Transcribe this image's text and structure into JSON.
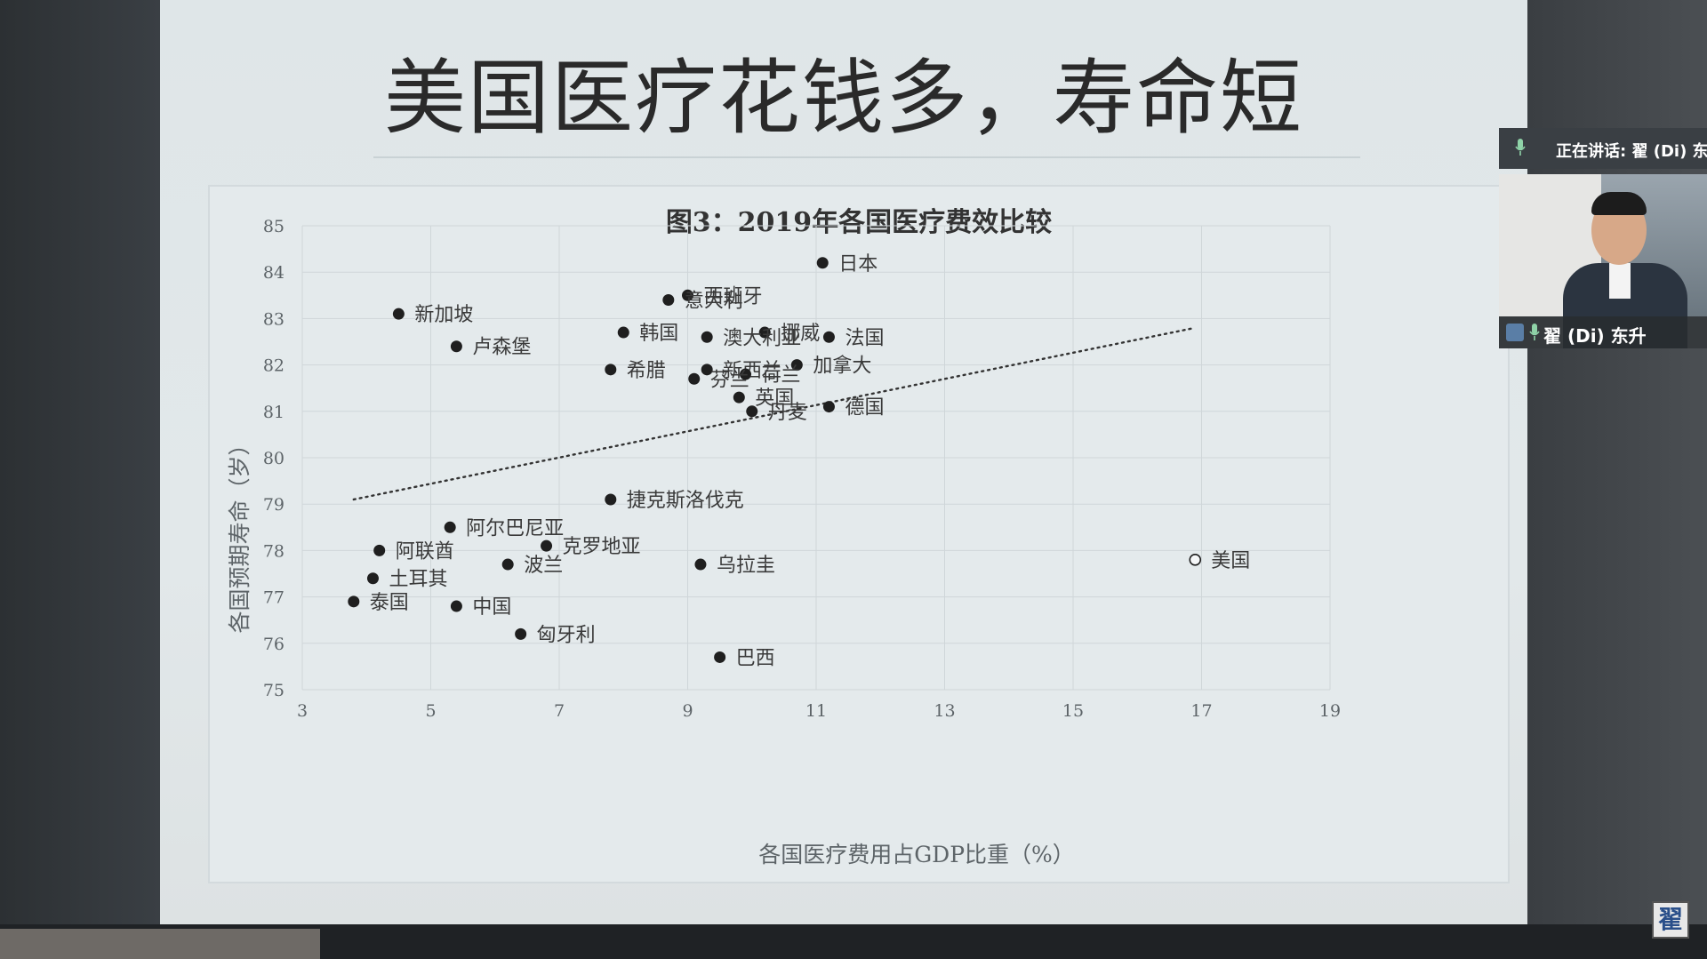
{
  "slide": {
    "title": "美国医疗花钱多，寿命短"
  },
  "chart_data": {
    "type": "scatter",
    "title": "图3：2019年各国医疗费效比较",
    "xlabel": "各国医疗费用占GDP比重（%）",
    "ylabel": "各国预期寿命（岁）",
    "xlim": [
      3,
      19
    ],
    "ylim": [
      75,
      85
    ],
    "xticks": [
      "3",
      "5",
      "7",
      "9",
      "11",
      "13",
      "15",
      "17",
      "19"
    ],
    "yticks": [
      "75",
      "76",
      "77",
      "78",
      "79",
      "80",
      "81",
      "82",
      "83",
      "84",
      "85"
    ],
    "grid": true,
    "trendline": {
      "style": "dotted",
      "from": [
        3.8,
        79.1
      ],
      "to": [
        16.9,
        82.8
      ]
    },
    "points": [
      {
        "label": "日本",
        "x": 11.1,
        "y": 84.2
      },
      {
        "label": "西班牙",
        "x": 9.0,
        "y": 83.5
      },
      {
        "label": "意大利",
        "x": 8.7,
        "y": 83.4
      },
      {
        "label": "新加坡",
        "x": 4.5,
        "y": 83.1
      },
      {
        "label": "挪威",
        "x": 10.2,
        "y": 82.7
      },
      {
        "label": "韩国",
        "x": 8.0,
        "y": 82.7
      },
      {
        "label": "澳大利亚",
        "x": 9.3,
        "y": 82.6
      },
      {
        "label": "法国",
        "x": 11.2,
        "y": 82.6
      },
      {
        "label": "卢森堡",
        "x": 5.4,
        "y": 82.4
      },
      {
        "label": "加拿大",
        "x": 10.7,
        "y": 82.0
      },
      {
        "label": "新西兰",
        "x": 9.3,
        "y": 81.9
      },
      {
        "label": "希腊",
        "x": 7.8,
        "y": 81.9
      },
      {
        "label": "荷兰",
        "x": 9.9,
        "y": 81.8
      },
      {
        "label": "芬兰",
        "x": 9.1,
        "y": 81.7
      },
      {
        "label": "英国",
        "x": 9.8,
        "y": 81.3
      },
      {
        "label": "德国",
        "x": 11.2,
        "y": 81.1
      },
      {
        "label": "丹麦",
        "x": 10.0,
        "y": 81.0
      },
      {
        "label": "捷克斯洛伐克",
        "x": 7.8,
        "y": 79.1
      },
      {
        "label": "阿尔巴尼亚",
        "x": 5.3,
        "y": 78.5
      },
      {
        "label": "克罗地亚",
        "x": 6.8,
        "y": 78.1
      },
      {
        "label": "阿联酋",
        "x": 4.2,
        "y": 78.0
      },
      {
        "label": "美国",
        "x": 16.9,
        "y": 77.8,
        "hollow": true
      },
      {
        "label": "乌拉圭",
        "x": 9.2,
        "y": 77.7
      },
      {
        "label": "波兰",
        "x": 6.2,
        "y": 77.7
      },
      {
        "label": "土耳其",
        "x": 4.1,
        "y": 77.4
      },
      {
        "label": "泰国",
        "x": 3.8,
        "y": 76.9
      },
      {
        "label": "中国",
        "x": 5.4,
        "y": 76.8
      },
      {
        "label": "匈牙利",
        "x": 6.4,
        "y": 76.2
      },
      {
        "label": "巴西",
        "x": 9.5,
        "y": 75.7
      }
    ]
  },
  "meeting": {
    "speaking_label": "正在讲话: 翟 (Di) 东",
    "participant_name": "翟 (Di) 东升",
    "logo_char": "翟"
  },
  "colors": {
    "marker": "#1f1f1f",
    "grid": "#cfd6d9",
    "axis_text": "#5d6468",
    "label_text": "#3a3a3a"
  }
}
